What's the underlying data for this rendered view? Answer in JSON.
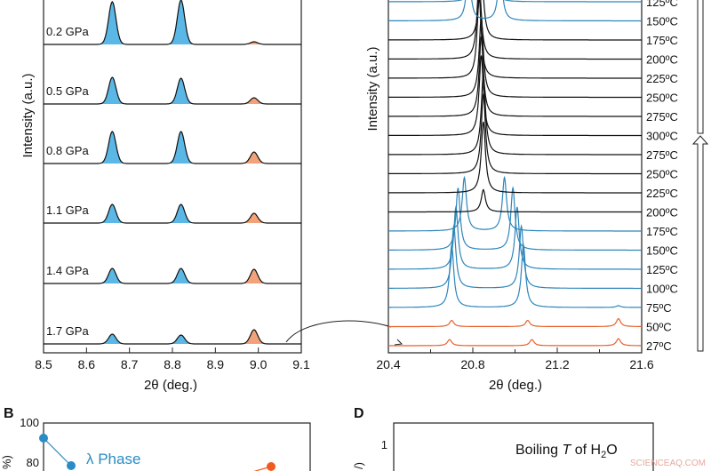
{
  "chart_data": [
    {
      "type": "line",
      "panel": "",
      "xlabel": "2θ (deg.)",
      "ylabel": "Intensity (a.u.)",
      "xlim": [
        8.5,
        9.1
      ],
      "xticks": [
        "8.5",
        "8.6",
        "8.7",
        "8.8",
        "8.9",
        "9.0",
        "9.1"
      ],
      "peak_positions": [
        8.66,
        8.82,
        8.99
      ],
      "peak_colors": [
        "#5bb8e6",
        "#5bb8e6",
        "#f2a27a"
      ],
      "series": [
        {
          "name": "0.2 GPa",
          "peak_heights": [
            48,
            50,
            3
          ]
        },
        {
          "name": "0.5 GPa",
          "peak_heights": [
            30,
            29,
            7
          ]
        },
        {
          "name": "0.8 GPa",
          "peak_heights": [
            36,
            36,
            13
          ]
        },
        {
          "name": "1.1 GPa",
          "peak_heights": [
            21,
            21,
            11
          ]
        },
        {
          "name": "1.4 GPa",
          "peak_heights": [
            17,
            17,
            16
          ]
        },
        {
          "name": "1.7 GPa",
          "peak_heights": [
            11,
            10,
            16
          ]
        }
      ]
    },
    {
      "type": "line",
      "panel": "",
      "xlabel": "2θ (deg.)",
      "ylabel": "Intensity (a.u.)",
      "xlim": [
        20.4,
        21.6
      ],
      "xticks": [
        "20.4",
        "20.8",
        "21.2",
        "21.6"
      ],
      "series_colors": {
        "orange": "#e8602c",
        "blue": "#2f86bb",
        "black": "#111111"
      },
      "series": [
        {
          "name": "27ºC",
          "color": "orange",
          "peaks": [
            [
              20.69,
              7
            ],
            [
              21.08,
              7
            ],
            [
              21.49,
              8
            ]
          ]
        },
        {
          "name": "50ºC",
          "color": "orange",
          "peaks": [
            [
              20.7,
              7
            ],
            [
              21.06,
              7
            ],
            [
              21.49,
              9
            ]
          ]
        },
        {
          "name": "75ºC",
          "color": "blue",
          "peaks": [
            [
              20.7,
              70
            ],
            [
              21.04,
              70
            ],
            [
              21.49,
              2
            ]
          ]
        },
        {
          "name": "100ºC",
          "color": "blue",
          "peaks": [
            [
              20.71,
              70
            ],
            [
              21.03,
              70
            ]
          ]
        },
        {
          "name": "125ºC",
          "color": "blue",
          "peaks": [
            [
              20.72,
              70
            ],
            [
              21.01,
              70
            ]
          ]
        },
        {
          "name": "150ºC",
          "color": "blue",
          "peaks": [
            [
              20.73,
              70
            ],
            [
              20.99,
              70
            ]
          ]
        },
        {
          "name": "175ºC",
          "color": "blue",
          "peaks": [
            [
              20.76,
              60
            ],
            [
              20.95,
              60
            ]
          ]
        },
        {
          "name": "200ºC",
          "color": "black",
          "peaks": [
            [
              20.85,
              25
            ]
          ]
        },
        {
          "name": "225ºC",
          "color": "black",
          "peaks": [
            [
              20.85,
              80
            ]
          ]
        },
        {
          "name": "250ºC",
          "color": "black",
          "peaks": [
            [
              20.85,
              90
            ]
          ]
        },
        {
          "name": "275ºC",
          "color": "black",
          "peaks": [
            [
              20.85,
              90
            ]
          ]
        },
        {
          "name": "300ºC",
          "color": "black",
          "peaks": [
            [
              20.84,
              90
            ]
          ]
        },
        {
          "name": "275ºC",
          "color": "black",
          "peaks": [
            [
              20.84,
              90
            ]
          ]
        },
        {
          "name": "250ºC",
          "color": "black",
          "peaks": [
            [
              20.84,
              90
            ]
          ]
        },
        {
          "name": "225ºC",
          "color": "black",
          "peaks": [
            [
              20.83,
              90
            ]
          ]
        },
        {
          "name": "200ºC",
          "color": "black",
          "peaks": [
            [
              20.83,
              90
            ]
          ]
        },
        {
          "name": "175ºC",
          "color": "black",
          "peaks": [
            [
              20.84,
              90
            ]
          ]
        },
        {
          "name": "150ºC",
          "color": "blue",
          "peaks": [
            [
              20.78,
              60
            ],
            [
              20.93,
              60
            ]
          ]
        },
        {
          "name": "125ºC",
          "color": "blue",
          "peaks": [
            [
              20.8,
              40
            ],
            [
              20.9,
              40
            ]
          ]
        }
      ]
    },
    {
      "type": "line",
      "panel": "B",
      "yticks": [
        "100",
        "80"
      ],
      "ylabel_partial": "%)",
      "annotation": "λ Phase",
      "colors": {
        "lambda": "#2a8cc4",
        "other": "#f05a1e"
      }
    },
    {
      "type": "line",
      "panel": "D",
      "yticks": [
        "1"
      ],
      "ylabel_partial": "/)",
      "annotation": "Boiling T of H₂O",
      "annotation_parts": {
        "pre": "Boiling ",
        "italic": "T",
        "mid": " of H",
        "sub": "2",
        "post": "O"
      }
    }
  ],
  "watermark": "SCIENCEAQ.COM"
}
